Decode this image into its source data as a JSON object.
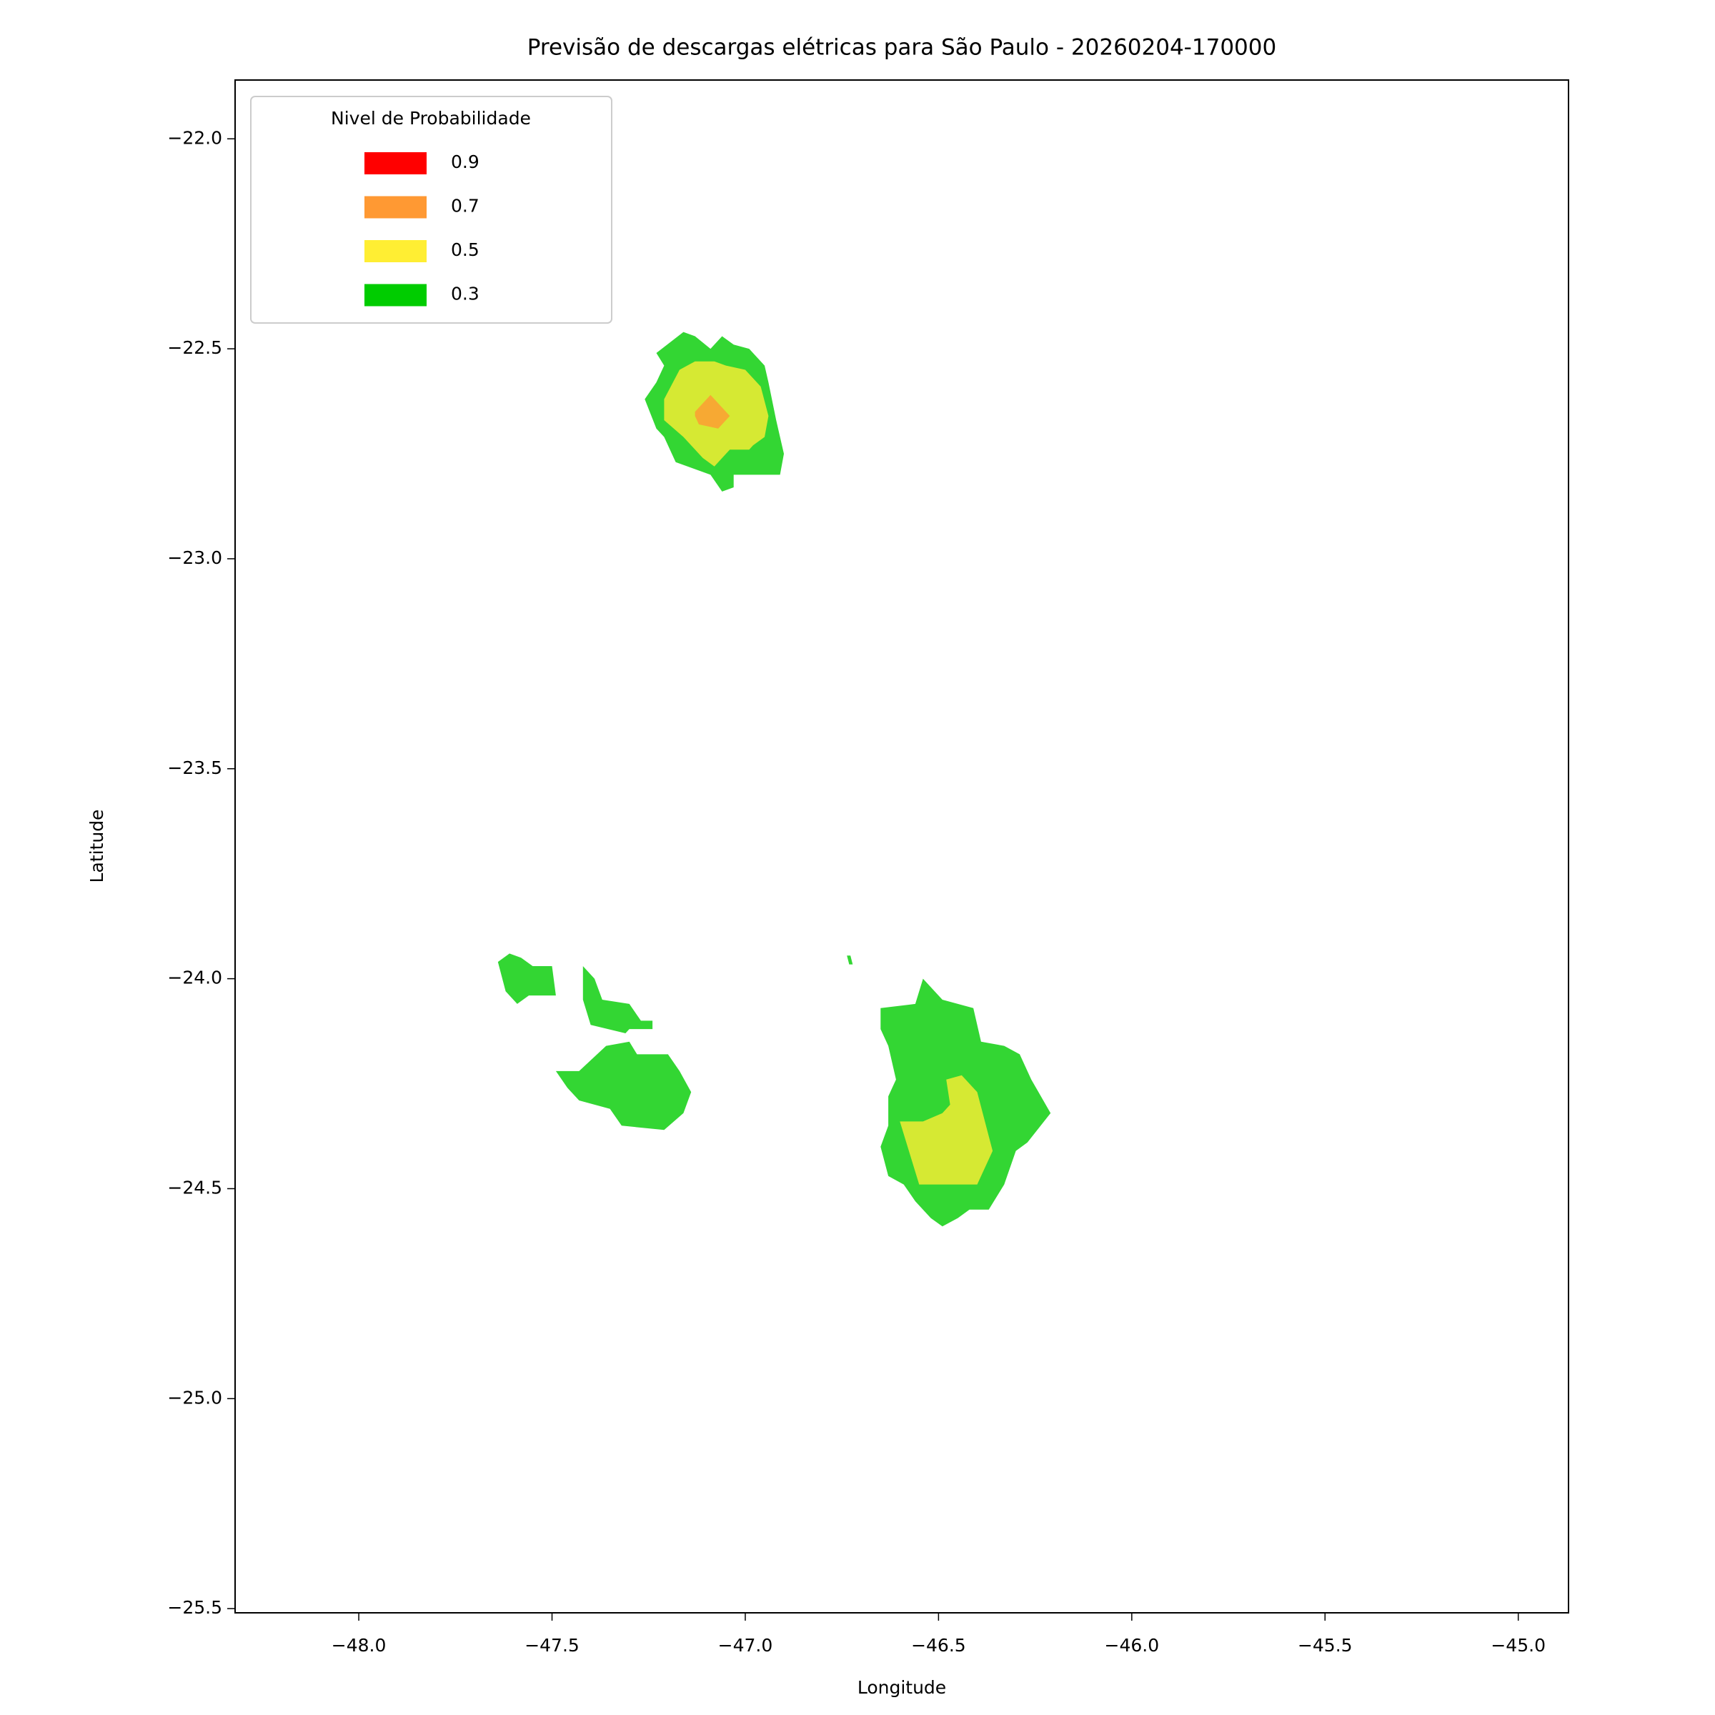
{
  "chart_data": {
    "type": "contour",
    "title": "Previsão de descargas elétricas para São Paulo - 20260204-170000",
    "xlabel": "Longitude",
    "ylabel": "Latitude",
    "xlim": [
      -48.32,
      -44.87
    ],
    "ylim": [
      -25.51,
      -21.86
    ],
    "xticks": [
      {
        "value": -48,
        "label": "−48.0"
      },
      {
        "value": -47.5,
        "label": "−47.5"
      },
      {
        "value": -47,
        "label": "−47.0"
      },
      {
        "value": -46.5,
        "label": "−46.5"
      },
      {
        "value": -46,
        "label": "−46.0"
      },
      {
        "value": -45.5,
        "label": "−45.5"
      },
      {
        "value": -45,
        "label": "−45.0"
      }
    ],
    "yticks": [
      {
        "value": -22,
        "label": "−22.0"
      },
      {
        "value": -22.5,
        "label": "−22.5"
      },
      {
        "value": -23,
        "label": "−23.0"
      },
      {
        "value": -23.5,
        "label": "−23.5"
      },
      {
        "value": -24,
        "label": "−24.0"
      },
      {
        "value": -24.5,
        "label": "−24.5"
      },
      {
        "value": -25,
        "label": "−25.0"
      },
      {
        "value": -25.5,
        "label": "−25.5"
      }
    ],
    "legend_title": "Nivel de Probabilidade",
    "legend_position": "upper left",
    "fill_opacity": 0.8,
    "series": [
      {
        "name": "0.3",
        "color": "#00cc00",
        "polygons": [
          [
            [
              -47.23,
              -22.51
            ],
            [
              -47.16,
              -22.46
            ],
            [
              -47.13,
              -22.47
            ],
            [
              -47.09,
              -22.5
            ],
            [
              -47.06,
              -22.47
            ],
            [
              -47.03,
              -22.49
            ],
            [
              -46.99,
              -22.5
            ],
            [
              -46.95,
              -22.54
            ],
            [
              -46.94,
              -22.58
            ],
            [
              -46.92,
              -22.67
            ],
            [
              -46.9,
              -22.75
            ],
            [
              -46.91,
              -22.8
            ],
            [
              -47.03,
              -22.8
            ],
            [
              -47.03,
              -22.83
            ],
            [
              -47.06,
              -22.84
            ],
            [
              -47.09,
              -22.8
            ],
            [
              -47.18,
              -22.77
            ],
            [
              -47.21,
              -22.71
            ],
            [
              -47.23,
              -22.69
            ],
            [
              -47.26,
              -22.62
            ],
            [
              -47.23,
              -22.58
            ],
            [
              -47.21,
              -22.54
            ]
          ],
          [
            [
              -47.64,
              -23.96
            ],
            [
              -47.61,
              -23.94
            ],
            [
              -47.58,
              -23.95
            ],
            [
              -47.55,
              -23.97
            ],
            [
              -47.5,
              -23.97
            ],
            [
              -47.49,
              -24.04
            ],
            [
              -47.56,
              -24.04
            ],
            [
              -47.59,
              -24.06
            ],
            [
              -47.62,
              -24.03
            ]
          ],
          [
            [
              -47.42,
              -23.97
            ],
            [
              -47.39,
              -24.0
            ],
            [
              -47.37,
              -24.05
            ],
            [
              -47.3,
              -24.06
            ],
            [
              -47.27,
              -24.1
            ],
            [
              -47.24,
              -24.1
            ],
            [
              -47.24,
              -24.12
            ],
            [
              -47.3,
              -24.12
            ],
            [
              -47.31,
              -24.13
            ],
            [
              -47.4,
              -24.11
            ],
            [
              -47.42,
              -24.05
            ]
          ],
          [
            [
              -47.36,
              -24.16
            ],
            [
              -47.3,
              -24.15
            ],
            [
              -47.28,
              -24.18
            ],
            [
              -47.2,
              -24.18
            ],
            [
              -47.17,
              -24.22
            ],
            [
              -47.14,
              -24.27
            ],
            [
              -47.16,
              -24.32
            ],
            [
              -47.21,
              -24.36
            ],
            [
              -47.32,
              -24.35
            ],
            [
              -47.35,
              -24.31
            ],
            [
              -47.43,
              -24.29
            ],
            [
              -47.46,
              -24.26
            ],
            [
              -47.49,
              -24.22
            ],
            [
              -47.43,
              -24.22
            ]
          ],
          [
            [
              -46.737,
              -23.945
            ],
            [
              -46.728,
              -23.945
            ],
            [
              -46.722,
              -23.966
            ],
            [
              -46.731,
              -23.966
            ]
          ],
          [
            [
              -46.65,
              -24.07
            ],
            [
              -46.56,
              -24.06
            ],
            [
              -46.54,
              -24.0
            ],
            [
              -46.49,
              -24.05
            ],
            [
              -46.41,
              -24.07
            ],
            [
              -46.4,
              -24.11
            ],
            [
              -46.39,
              -24.15
            ],
            [
              -46.33,
              -24.16
            ],
            [
              -46.29,
              -24.18
            ],
            [
              -46.26,
              -24.24
            ],
            [
              -46.21,
              -24.32
            ],
            [
              -46.27,
              -24.39
            ],
            [
              -46.3,
              -24.41
            ],
            [
              -46.33,
              -24.49
            ],
            [
              -46.37,
              -24.55
            ],
            [
              -46.42,
              -24.55
            ],
            [
              -46.45,
              -24.57
            ],
            [
              -46.49,
              -24.59
            ],
            [
              -46.52,
              -24.57
            ],
            [
              -46.56,
              -24.53
            ],
            [
              -46.59,
              -24.49
            ],
            [
              -46.63,
              -24.47
            ],
            [
              -46.65,
              -24.4
            ],
            [
              -46.63,
              -24.35
            ],
            [
              -46.63,
              -24.28
            ],
            [
              -46.61,
              -24.24
            ],
            [
              -46.63,
              -24.16
            ],
            [
              -46.65,
              -24.12
            ]
          ]
        ]
      },
      {
        "name": "0.5",
        "color": "#ffee33",
        "polygons": [
          [
            [
              -47.21,
              -22.62
            ],
            [
              -47.17,
              -22.55
            ],
            [
              -47.13,
              -22.53
            ],
            [
              -47.08,
              -22.53
            ],
            [
              -47.05,
              -22.54
            ],
            [
              -47.0,
              -22.55
            ],
            [
              -46.96,
              -22.59
            ],
            [
              -46.94,
              -22.66
            ],
            [
              -46.95,
              -22.71
            ],
            [
              -46.98,
              -22.73
            ],
            [
              -46.99,
              -22.74
            ],
            [
              -47.04,
              -22.74
            ],
            [
              -47.08,
              -22.78
            ],
            [
              -47.11,
              -22.76
            ],
            [
              -47.16,
              -22.71
            ],
            [
              -47.21,
              -22.67
            ]
          ],
          [
            [
              -46.6,
              -24.34
            ],
            [
              -46.54,
              -24.34
            ],
            [
              -46.49,
              -24.32
            ],
            [
              -46.47,
              -24.3
            ],
            [
              -46.48,
              -24.24
            ],
            [
              -46.44,
              -24.23
            ],
            [
              -46.4,
              -24.27
            ],
            [
              -46.36,
              -24.41
            ],
            [
              -46.4,
              -24.49
            ],
            [
              -46.55,
              -24.49
            ]
          ]
        ]
      },
      {
        "name": "0.7",
        "color": "#ff9933",
        "polygons": [
          [
            [
              -47.13,
              -22.65
            ],
            [
              -47.09,
              -22.61
            ],
            [
              -47.04,
              -22.66
            ],
            [
              -47.07,
              -22.69
            ],
            [
              -47.12,
              -22.68
            ],
            [
              -47.13,
              -22.66
            ]
          ]
        ]
      },
      {
        "name": "0.9",
        "color": "#ff0000",
        "polygons": []
      }
    ]
  }
}
